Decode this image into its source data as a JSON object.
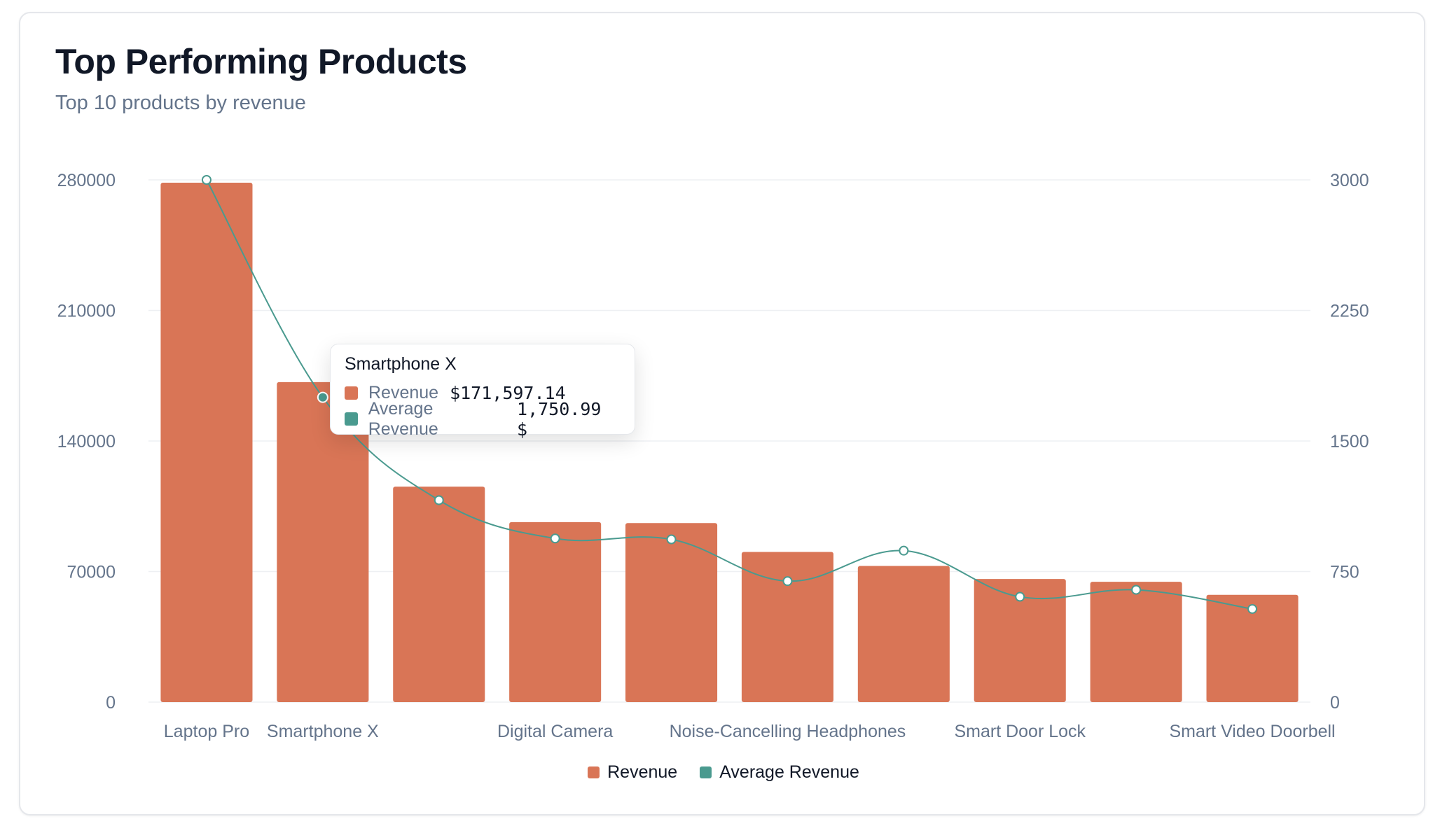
{
  "header": {
    "title": "Top Performing Products",
    "subtitle": "Top 10 products by revenue"
  },
  "colors": {
    "revenue": "#d97556",
    "average": "#4a9a8f",
    "grid": "#eef0f3",
    "tick": "#64748b"
  },
  "chart_data": {
    "type": "bar",
    "title": "Top Performing Products",
    "subtitle": "Top 10 products by revenue",
    "categories": [
      "Laptop Pro",
      "Smartphone X",
      "",
      "Digital Camera",
      "",
      "Noise-Cancelling Headphones",
      "",
      "Smart Door Lock",
      "",
      "Smart Video Doorbell"
    ],
    "series": [
      {
        "name": "Revenue",
        "type": "bar",
        "axis": "left",
        "values": [
          278500,
          171597.14,
          115500,
          96500,
          96000,
          80500,
          73000,
          66000,
          64500,
          57500
        ]
      },
      {
        "name": "Average Revenue",
        "type": "line",
        "axis": "right",
        "values": [
          3000,
          1750.99,
          1160,
          940,
          935,
          695,
          870,
          605,
          645,
          535
        ]
      }
    ],
    "y_left": {
      "min": 0,
      "max": 280000,
      "ticks": [
        "0",
        "70000",
        "140000",
        "210000",
        "280000"
      ]
    },
    "y_right": {
      "min": 0,
      "max": 3000,
      "ticks": [
        "0",
        "750",
        "1500",
        "2250",
        "3000"
      ]
    },
    "grid": true,
    "legend": "bottom-center",
    "active_index": 1
  },
  "tooltip": {
    "title": "Smartphone X",
    "rows": [
      {
        "label": "Revenue",
        "value": "$171,597.14"
      },
      {
        "label": "Average Revenue",
        "value": "1,750.99 $"
      }
    ]
  },
  "legend": [
    {
      "label": "Revenue"
    },
    {
      "label": "Average Revenue"
    }
  ]
}
